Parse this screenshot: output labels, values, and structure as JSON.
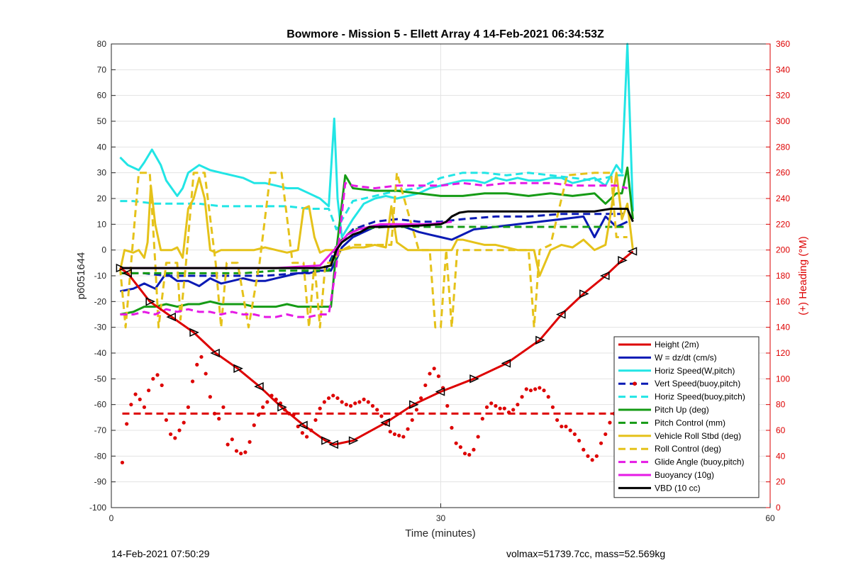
{
  "chart_data": {
    "type": "line",
    "title": "Bowmore - Mission 5 - Ellett Array 4 14-Feb-2021 06:34:53Z",
    "xlabel": "Time (minutes)",
    "ylabel": "p6051644",
    "ylabel_right": "(+) Heading (°M)",
    "xlim": [
      0,
      60
    ],
    "ylim": [
      -100,
      80
    ],
    "ylim_right": [
      0,
      360
    ],
    "xticks": [
      0,
      30,
      60
    ],
    "yticks": [
      -100,
      -90,
      -80,
      -70,
      -60,
      -50,
      -40,
      -30,
      -20,
      -10,
      0,
      10,
      20,
      30,
      40,
      50,
      60,
      70,
      80
    ],
    "yticks_right": [
      0,
      20,
      40,
      60,
      80,
      100,
      120,
      140,
      160,
      180,
      200,
      220,
      240,
      260,
      280,
      300,
      320,
      340,
      360
    ],
    "grid": true,
    "legend_position": "bottom-right",
    "series": [
      {
        "name": "Height (2m)",
        "color": "#dd0000",
        "style": "solid",
        "markers": "triangle",
        "x": [
          0.8,
          1.5,
          3.5,
          5.5,
          7.5,
          9.5,
          11.5,
          13.5,
          15.5,
          17.5,
          19.5,
          20.3,
          22,
          25,
          27.5,
          30,
          33,
          36,
          39,
          41,
          43,
          45,
          46.5,
          47.5
        ],
        "y": [
          -7,
          -9,
          -20,
          -26,
          -32,
          -40,
          -46,
          -53,
          -61,
          -68,
          -74,
          -75.5,
          -74,
          -67,
          -60,
          -55,
          -50,
          -44,
          -35,
          -25,
          -17,
          -10,
          -4,
          -0.5
        ]
      },
      {
        "name": "W = dz/dt (cm/s)",
        "color": "#0a1ab4",
        "style": "solid",
        "x": [
          0.8,
          2,
          3,
          4,
          5,
          6,
          7,
          8,
          9,
          10,
          11,
          12,
          13,
          14,
          15,
          16,
          17,
          18,
          19,
          20,
          21,
          22,
          24,
          26,
          28,
          29,
          30,
          31,
          32,
          33,
          35,
          37,
          39,
          41,
          43,
          44,
          45,
          46,
          47
        ],
        "y": [
          -16,
          -15,
          -13,
          -15,
          -9,
          -12,
          -12,
          -14,
          -11,
          -13,
          -12,
          -11,
          -12,
          -12,
          -11,
          -10,
          -9,
          -9,
          -8,
          -8,
          1,
          5,
          9,
          10,
          7,
          6,
          5,
          4,
          6,
          8,
          9,
          10,
          11,
          12,
          13,
          5,
          13,
          9,
          11
        ]
      },
      {
        "name": "Horiz Speed(W,pitch)",
        "color": "#22e5e5",
        "style": "solid",
        "x": [
          0.8,
          1.5,
          2.5,
          3,
          3.7,
          4.5,
          5,
          6,
          6.5,
          7,
          8,
          9,
          10,
          11,
          12,
          13,
          14,
          15,
          16,
          17,
          18,
          19,
          19.8,
          20.3,
          20.6,
          21,
          22,
          23,
          24,
          25,
          26,
          27,
          28,
          29,
          30,
          31,
          32,
          33,
          34,
          35,
          36,
          37,
          38,
          39,
          40,
          41,
          42,
          43,
          44,
          45,
          46,
          46.5,
          47,
          47.5
        ],
        "y": [
          36,
          33,
          31,
          34,
          39,
          33,
          27,
          21,
          24,
          30,
          33,
          31,
          30,
          29,
          28,
          26,
          26,
          25,
          24,
          24,
          22,
          20,
          17,
          51,
          20,
          5,
          12,
          18,
          20,
          21,
          20,
          21,
          22,
          24,
          25,
          26,
          27,
          27,
          26,
          28,
          27,
          28,
          27,
          27,
          28,
          28,
          26,
          27,
          28,
          25,
          33,
          30,
          80,
          15
        ]
      },
      {
        "name": "Vert Speed(buoy,pitch)",
        "color": "#0a1ab4",
        "style": "dashed",
        "x": [
          0.8,
          3,
          5,
          8,
          11,
          14,
          17,
          19.5,
          20.5,
          22,
          24,
          26,
          28,
          30,
          32,
          35,
          38,
          41,
          44,
          46,
          47
        ],
        "y": [
          -9,
          -9,
          -10,
          -10,
          -10,
          -10,
          -9,
          -8,
          1,
          8,
          11,
          12,
          11,
          11,
          12,
          13,
          13,
          14,
          14,
          14,
          14
        ]
      },
      {
        "name": "Horiz Speed(buoy,pitch)",
        "color": "#22e5e5",
        "style": "dashed",
        "x": [
          0.8,
          2,
          4,
          6,
          8,
          10,
          12,
          14,
          16,
          18,
          19.8,
          20.5,
          22,
          24,
          26,
          28,
          30,
          32,
          34,
          36,
          38,
          40,
          42,
          44,
          46,
          47
        ],
        "y": [
          19,
          19,
          18,
          18,
          18,
          17,
          17,
          17,
          17,
          16,
          16,
          8,
          19,
          21,
          23,
          24,
          28,
          30,
          30,
          29,
          30,
          29,
          28,
          27,
          29,
          29
        ]
      },
      {
        "name": "Pitch Up (deg)",
        "color": "#159b15",
        "style": "solid",
        "x": [
          0.8,
          2,
          3,
          4,
          5,
          6,
          7,
          8,
          9,
          10,
          11,
          12,
          13,
          14,
          15,
          16,
          17,
          18,
          19,
          20,
          20.5,
          21.3,
          22,
          24,
          26,
          28,
          30,
          32,
          34,
          36,
          38,
          40,
          42,
          44,
          45,
          46,
          46.5,
          47,
          47.5
        ],
        "y": [
          -25,
          -24,
          -22,
          -22,
          -21,
          -22,
          -21,
          -21,
          -20,
          -21,
          -21,
          -21,
          -22,
          -22,
          -22,
          -21,
          -22,
          -22,
          -22,
          -22,
          0,
          29,
          24,
          23,
          23,
          22,
          21,
          21,
          22,
          22,
          21,
          22,
          21,
          22,
          18,
          22,
          22,
          32,
          12
        ]
      },
      {
        "name": "Pitch Control (mm)",
        "color": "#159b15",
        "style": "dashed",
        "x": [
          0.8,
          3,
          6,
          9,
          12,
          15,
          18,
          19.8,
          20.5,
          22,
          25,
          28,
          30,
          33,
          36,
          39,
          42,
          45,
          47
        ],
        "y": [
          -9,
          -9,
          -9,
          -9,
          -9,
          -8,
          -8,
          -8,
          2,
          8,
          9,
          9,
          9,
          9,
          9,
          9,
          9,
          9,
          9
        ]
      },
      {
        "name": "Vehicle Roll Stbd (deg)",
        "color": "#e5c21a",
        "style": "solid",
        "x": [
          0.8,
          1.2,
          2,
          2.5,
          3,
          3.3,
          3.6,
          4,
          4.5,
          5,
          5.5,
          6,
          6.5,
          7,
          7.5,
          8,
          8.5,
          9,
          9.5,
          10,
          11,
          12,
          13,
          14,
          15,
          16,
          17,
          17.5,
          18,
          18.5,
          19,
          19.5,
          20,
          21,
          22,
          23,
          24,
          25,
          25.5,
          26,
          27,
          28,
          29,
          30,
          31,
          31.5,
          32,
          33,
          34,
          35,
          36,
          37,
          38,
          38.5,
          39,
          40,
          41,
          42,
          43,
          44,
          45,
          45.5,
          46,
          46.5,
          47,
          47.5
        ],
        "y": [
          -8,
          0,
          -1,
          0,
          -3,
          3,
          25,
          10,
          0,
          0,
          0,
          1,
          -3,
          16,
          20,
          28,
          20,
          0,
          -1,
          0,
          0,
          0,
          0,
          1,
          0,
          -1,
          0,
          16,
          17,
          5,
          -1,
          0,
          0,
          0,
          1,
          1,
          2,
          1,
          17,
          3,
          0,
          0,
          0,
          0,
          0,
          4,
          4,
          3,
          2,
          2,
          1,
          0,
          0,
          0,
          -10,
          0,
          2,
          1,
          4,
          0,
          2,
          15,
          30,
          12,
          18,
          0
        ]
      },
      {
        "name": "Roll Control (deg)",
        "color": "#e5c21a",
        "style": "dashed",
        "x": [
          0.8,
          1.3,
          1.8,
          2.5,
          3.5,
          4,
          4.3,
          5,
          6,
          6.3,
          6.8,
          7.5,
          8.5,
          9.5,
          10,
          10.5,
          11.5,
          12.5,
          13.5,
          14.5,
          15.5,
          16.5,
          17.5,
          18,
          18.5,
          19,
          19.5,
          20,
          21,
          22,
          23,
          25.5,
          26,
          27,
          28,
          29,
          29.5,
          30,
          30.5,
          31,
          31.5,
          32,
          34,
          36,
          38,
          38.5,
          39,
          40,
          41.5,
          44,
          45.5,
          46,
          47
        ],
        "y": [
          -7,
          -30,
          -5,
          30,
          30,
          -5,
          -30,
          -5,
          -5,
          -27,
          -5,
          30,
          30,
          -5,
          -30,
          -5,
          -5,
          -30,
          -5,
          30,
          30,
          -5,
          -5,
          -30,
          -5,
          -30,
          -5,
          -5,
          0,
          2,
          2,
          2,
          30,
          15,
          0,
          0,
          -30,
          -30,
          0,
          -30,
          0,
          0,
          0,
          0,
          0,
          -30,
          0,
          2,
          29,
          30,
          30,
          5,
          5
        ]
      },
      {
        "name": "Glide Angle (buoy,pitch)",
        "color": "#e51ae5",
        "style": "dashed",
        "x": [
          0.8,
          2,
          3,
          4,
          5,
          6,
          7,
          8,
          9,
          10,
          11,
          12,
          13,
          14,
          15,
          16,
          17,
          18,
          19,
          19.8,
          20.5,
          21.3,
          22,
          24,
          26,
          28,
          30,
          32,
          34,
          36,
          38,
          40,
          42,
          44,
          46,
          47
        ],
        "y": [
          -25,
          -25,
          -24,
          -25,
          -23,
          -24,
          -23,
          -24,
          -24,
          -25,
          -24,
          -25,
          -25,
          -26,
          -26,
          -25,
          -26,
          -26,
          -25,
          -25,
          -6,
          26,
          25,
          24,
          25,
          25,
          25,
          26,
          25,
          26,
          26,
          26,
          25,
          25,
          25,
          24
        ]
      },
      {
        "name": "Buoyancy (10g)",
        "color": "#e51ae5",
        "style": "solid",
        "x": [
          0.8,
          5,
          10,
          15,
          19,
          20.5,
          21.5,
          22.5,
          24.5,
          27,
          29,
          30,
          31
        ],
        "y": [
          -7,
          -7,
          -7,
          -7,
          -6,
          1,
          6,
          8,
          10,
          10,
          10,
          10.5,
          11
        ]
      },
      {
        "name": "VBD (10 cc)",
        "color": "#000000",
        "style": "solid",
        "x": [
          0.8,
          5,
          10,
          15,
          19,
          20,
          20.5,
          21,
          22,
          22.7,
          23.5,
          25,
          28,
          30,
          30.5,
          31,
          31.7,
          32.5,
          35,
          40,
          44,
          45.5,
          46.5,
          47,
          47.5
        ],
        "y": [
          -7,
          -7,
          -7,
          -7,
          -7,
          -6,
          0,
          3,
          6,
          7,
          9,
          9,
          9.5,
          10,
          11,
          13,
          14.5,
          15,
          15,
          15,
          15,
          16,
          16,
          16,
          11
        ]
      },
      {
        "name": "Heading",
        "axis": "right",
        "color": "#dd0000",
        "style": "dotted",
        "x": [
          1.0,
          1.4,
          1.8,
          2.2,
          2.6,
          3.0,
          3.4,
          3.8,
          4.2,
          4.6,
          5.0,
          5.4,
          5.8,
          6.2,
          6.6,
          7.0,
          7.4,
          7.8,
          8.2,
          8.6,
          9.0,
          9.4,
          9.8,
          10.2,
          10.6,
          11.0,
          11.4,
          11.8,
          12.2,
          12.6,
          13.0,
          13.4,
          13.8,
          14.2,
          14.6,
          15.0,
          15.4,
          15.8,
          16.2,
          16.6,
          17.0,
          17.4,
          17.8,
          18.2,
          18.6,
          19.0,
          19.4,
          19.8,
          20.2,
          20.6,
          21.0,
          21.4,
          21.8,
          22.2,
          22.6,
          23.0,
          23.4,
          23.8,
          24.2,
          24.6,
          25.0,
          25.4,
          25.8,
          26.2,
          26.6,
          27.0,
          27.4,
          27.8,
          28.2,
          28.6,
          29.0,
          29.4,
          29.8,
          30.2,
          30.6,
          31.0,
          31.4,
          31.8,
          32.2,
          32.6,
          33.0,
          33.4,
          33.8,
          34.2,
          34.6,
          35.0,
          35.4,
          35.8,
          36.2,
          36.6,
          37.0,
          37.4,
          37.8,
          38.2,
          38.6,
          39.0,
          39.4,
          39.8,
          40.2,
          40.6,
          41.0,
          41.4,
          41.8,
          42.2,
          42.6,
          43.0,
          43.4,
          43.8,
          44.2,
          44.6,
          45.0,
          45.4,
          45.8,
          46.2,
          46.6,
          47.0,
          47.4
        ],
        "y": [
          35,
          65,
          80,
          88,
          84,
          78,
          91,
          100,
          103,
          95,
          68,
          57,
          54,
          60,
          66,
          78,
          98,
          111,
          117,
          104,
          86,
          73,
          69,
          78,
          49,
          53,
          44,
          42,
          43,
          51,
          64,
          72,
          78,
          82,
          87,
          84,
          81,
          76,
          73,
          72,
          63,
          58,
          55,
          60,
          68,
          77,
          82,
          85,
          87,
          85,
          82,
          80,
          79,
          81,
          82,
          84,
          82,
          79,
          76,
          71,
          65,
          59,
          57,
          56,
          55,
          61,
          68,
          76,
          85,
          95,
          104,
          108,
          102,
          93,
          79,
          62,
          50,
          47,
          42,
          41,
          45,
          55,
          69,
          78,
          81,
          79,
          77,
          77,
          74,
          76,
          80,
          86,
          92,
          91,
          92,
          93,
          91,
          86,
          78,
          68,
          63,
          63,
          60,
          57,
          52,
          45,
          40,
          37,
          40,
          50,
          57,
          66,
          73,
          78,
          82,
          81,
          76
        ]
      },
      {
        "name": "Heading mean",
        "axis": "right",
        "color": "#dd0000",
        "style": "dashed",
        "x": [
          1,
          47
        ],
        "y": [
          73,
          73
        ]
      }
    ]
  },
  "footer": {
    "left": "14-Feb-2021 07:50:29",
    "right": "volmax=51739.7cc, mass=52.569kg"
  }
}
